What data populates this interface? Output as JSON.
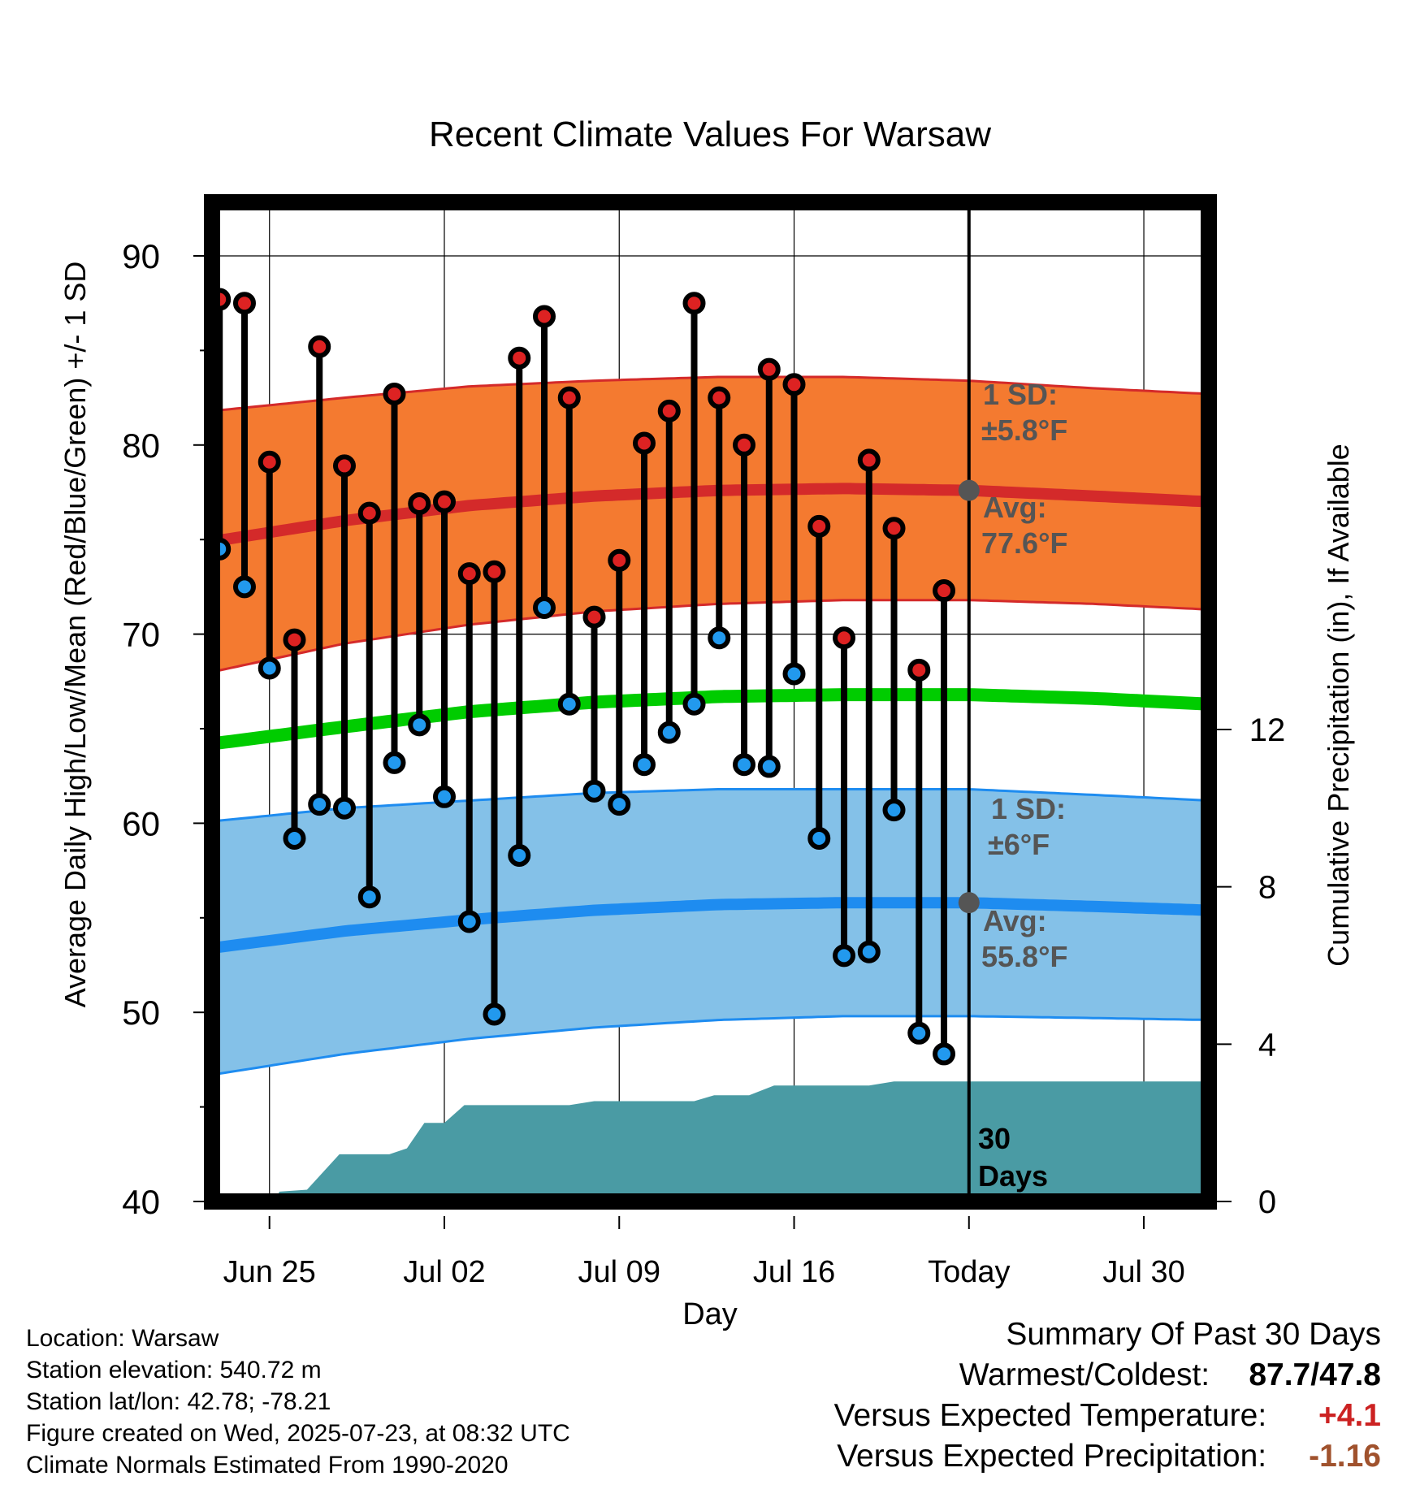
{
  "title": "Recent Climate Values For Warsaw",
  "xlabel": "Day",
  "ylabel_left": "Average Daily High/Low/Mean (Red/Blue/Green) +/- 1 SD",
  "ylabel_right": "Cumulative Precipitation (in), If Available",
  "annotations": {
    "high_sd_line1": "1 SD:",
    "high_sd_line2": "±5.8°F",
    "high_avg_line1": "Avg:",
    "high_avg_line2": "77.6°F",
    "low_sd_line1": "1 SD:",
    "low_sd_line2": "±6°F",
    "low_avg_line1": "Avg:",
    "low_avg_line2": "55.8°F",
    "days_line1": "30",
    "days_line2": "Days"
  },
  "info": {
    "location": "Location: Warsaw",
    "elevation": "Station elevation: 540.72 m",
    "latlon": "Station lat/lon: 42.78; -78.21",
    "created": "Figure created on Wed, 2025-07-23, at 08:32 UTC",
    "normals": "Climate Normals Estimated From 1990-2020"
  },
  "summary": {
    "heading": "Summary Of Past 30 Days",
    "warm_cold_label": "Warmest/Coldest:",
    "warm_cold_value": "87.7/47.8",
    "temp_label": "Versus Expected Temperature:",
    "temp_value": "+4.1",
    "precip_label": "Versus Expected Precipitation:",
    "precip_value": "-1.16"
  },
  "colors": {
    "high_band": "#f47a30",
    "high_line": "#d42a2a",
    "low_band": "#84c1e8",
    "low_line": "#1e8cf0",
    "mean_line": "#00cc00",
    "precip": "#4a9ba4",
    "high_dot": "#dd2222",
    "low_dot": "#2299ee",
    "today_dot": "#555555",
    "annotation_text": "#555555"
  },
  "chart_data": {
    "type": "line",
    "x_start_day": -30.3,
    "x_end_day": 9.6,
    "ylim": [
      40,
      90
    ],
    "y_ticks": [
      40,
      50,
      60,
      70,
      80,
      90
    ],
    "y2lim": [
      0,
      12
    ],
    "y2_ticks": [
      0,
      4,
      8,
      12
    ],
    "x_ticks": [
      {
        "day": -28,
        "label": "Jun 25"
      },
      {
        "day": -21,
        "label": "Jul 02"
      },
      {
        "day": -14,
        "label": "Jul 09"
      },
      {
        "day": -7,
        "label": "Jul 16"
      },
      {
        "day": 0,
        "label": "Today"
      },
      {
        "day": 7,
        "label": "Jul 30"
      }
    ],
    "observations": [
      {
        "day": -30,
        "high": 87.7,
        "low": 74.5
      },
      {
        "day": -29,
        "high": 87.5,
        "low": 72.5
      },
      {
        "day": -28,
        "high": 79.1,
        "low": 68.2
      },
      {
        "day": -27,
        "high": 69.7,
        "low": 59.2
      },
      {
        "day": -26,
        "high": 85.2,
        "low": 61.0
      },
      {
        "day": -25,
        "high": 78.9,
        "low": 60.8
      },
      {
        "day": -24,
        "high": 76.4,
        "low": 56.1
      },
      {
        "day": -23,
        "high": 82.7,
        "low": 63.2
      },
      {
        "day": -22,
        "high": 76.9,
        "low": 65.2
      },
      {
        "day": -21,
        "high": 77.0,
        "low": 61.4
      },
      {
        "day": -20,
        "high": 73.2,
        "low": 54.8
      },
      {
        "day": -19,
        "high": 73.3,
        "low": 49.9
      },
      {
        "day": -18,
        "high": 84.6,
        "low": 58.3
      },
      {
        "day": -17,
        "high": 86.8,
        "low": 71.4
      },
      {
        "day": -16,
        "high": 82.5,
        "low": 66.3
      },
      {
        "day": -15,
        "high": 70.9,
        "low": 61.7
      },
      {
        "day": -14,
        "high": 73.9,
        "low": 61.0
      },
      {
        "day": -13,
        "high": 80.1,
        "low": 63.1
      },
      {
        "day": -12,
        "high": 81.8,
        "low": 64.8
      },
      {
        "day": -11,
        "high": 87.5,
        "low": 66.3
      },
      {
        "day": -10,
        "high": 82.5,
        "low": 69.8
      },
      {
        "day": -9,
        "high": 80.0,
        "low": 63.1
      },
      {
        "day": -8,
        "high": 84.0,
        "low": 63.0
      },
      {
        "day": -7,
        "high": 83.2,
        "low": 67.9
      },
      {
        "day": -6,
        "high": 75.7,
        "low": 59.2
      },
      {
        "day": -5,
        "high": 69.8,
        "low": 53.0
      },
      {
        "day": -4,
        "high": 79.2,
        "low": 53.2
      },
      {
        "day": -3,
        "high": 75.6,
        "low": 60.7
      },
      {
        "day": -2,
        "high": 68.1,
        "low": 48.9
      },
      {
        "day": -1,
        "high": 72.3,
        "low": 47.8
      }
    ],
    "normals": [
      {
        "day": -30.3,
        "high": 74.9,
        "low": 53.4,
        "mean": 64.2,
        "high_sd": 6.9,
        "low_sd": 6.7
      },
      {
        "day": -25,
        "high": 76.0,
        "low": 54.3,
        "mean": 65.1,
        "high_sd": 6.5,
        "low_sd": 6.5
      },
      {
        "day": -20,
        "high": 76.8,
        "low": 54.9,
        "mean": 65.9,
        "high_sd": 6.3,
        "low_sd": 6.3
      },
      {
        "day": -15,
        "high": 77.3,
        "low": 55.4,
        "mean": 66.4,
        "high_sd": 6.1,
        "low_sd": 6.2
      },
      {
        "day": -10,
        "high": 77.6,
        "low": 55.7,
        "mean": 66.7,
        "high_sd": 6.0,
        "low_sd": 6.1
      },
      {
        "day": -5,
        "high": 77.7,
        "low": 55.8,
        "mean": 66.8,
        "high_sd": 5.9,
        "low_sd": 6.0
      },
      {
        "day": 0,
        "high": 77.6,
        "low": 55.8,
        "mean": 66.8,
        "high_sd": 5.8,
        "low_sd": 6.0
      },
      {
        "day": 5,
        "high": 77.3,
        "low": 55.6,
        "mean": 66.6,
        "high_sd": 5.7,
        "low_sd": 5.9
      },
      {
        "day": 9.6,
        "high": 77.0,
        "low": 55.4,
        "mean": 66.3,
        "high_sd": 5.7,
        "low_sd": 5.8
      }
    ],
    "today": {
      "high_avg": 77.6,
      "low_avg": 55.8
    },
    "precip_cumulative": [
      {
        "day": -30.3,
        "value": 0.0
      },
      {
        "day": -27.8,
        "value": 0.0
      },
      {
        "day": -27.6,
        "value": 0.25
      },
      {
        "day": -26.5,
        "value": 0.3
      },
      {
        "day": -25.2,
        "value": 1.2
      },
      {
        "day": -23.2,
        "value": 1.2
      },
      {
        "day": -22.5,
        "value": 1.35
      },
      {
        "day": -21.8,
        "value": 2.0
      },
      {
        "day": -21.0,
        "value": 2.0
      },
      {
        "day": -20.2,
        "value": 2.45
      },
      {
        "day": -16.0,
        "value": 2.45
      },
      {
        "day": -15.0,
        "value": 2.55
      },
      {
        "day": -11.0,
        "value": 2.55
      },
      {
        "day": -10.2,
        "value": 2.7
      },
      {
        "day": -8.8,
        "value": 2.7
      },
      {
        "day": -7.8,
        "value": 2.95
      },
      {
        "day": -4.0,
        "value": 2.95
      },
      {
        "day": -3.0,
        "value": 3.05
      },
      {
        "day": 9.6,
        "value": 3.05
      }
    ]
  }
}
